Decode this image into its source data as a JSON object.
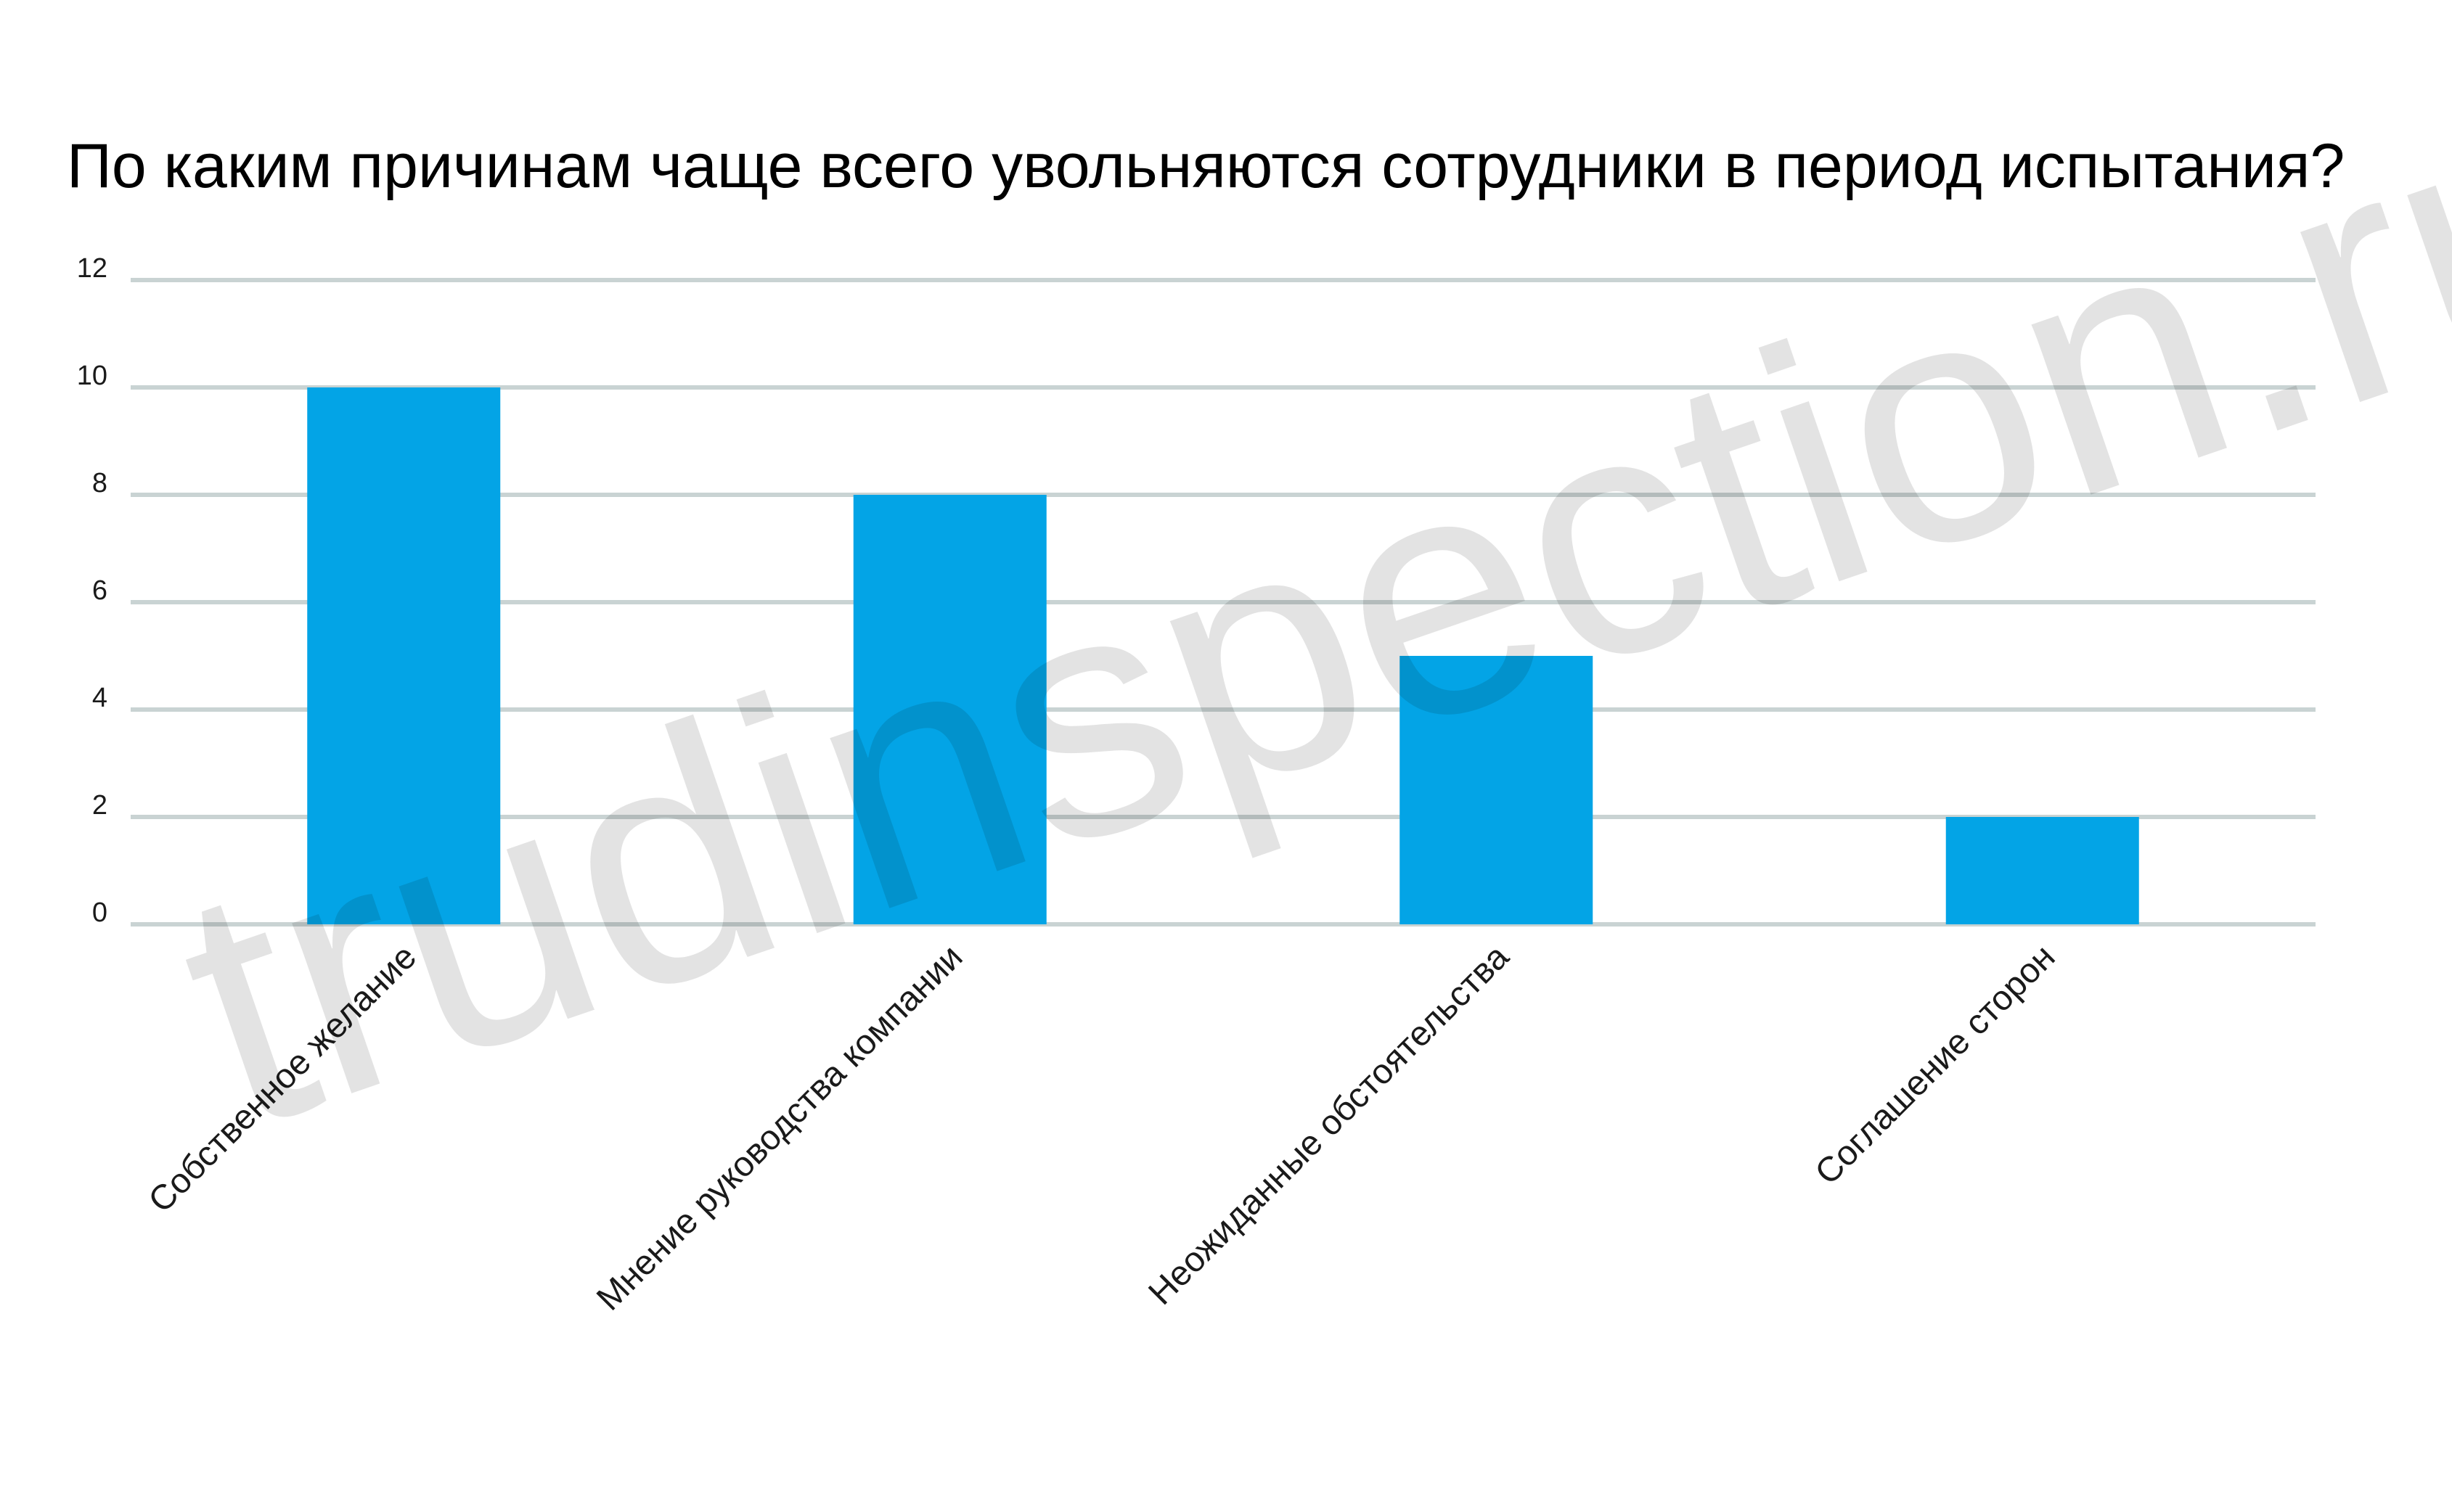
{
  "chart_data": {
    "type": "bar",
    "title": "По каким причинам чаще всего увольняются сотрудники в период испытания?",
    "categories": [
      "Собственное желание",
      "Мнение руководства компании",
      "Неожиданные обстоятельства",
      "Соглашение сторон"
    ],
    "values": [
      10,
      8,
      5,
      2
    ],
    "yticks": [
      "0",
      "2",
      "4",
      "6",
      "8",
      "10",
      "12"
    ],
    "ylim": [
      0,
      12
    ],
    "grid": true,
    "legend": "none",
    "bar_color": "#03a4e6",
    "grid_color": "#c9d3d3"
  },
  "watermark": "trudinspection.ru"
}
